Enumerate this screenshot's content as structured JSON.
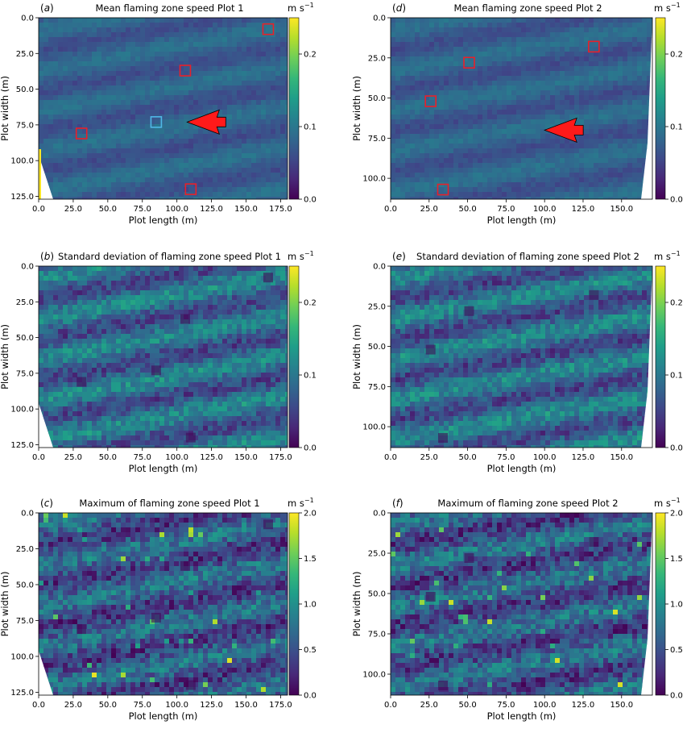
{
  "colors": {
    "viridis": [
      "#440154",
      "#482878",
      "#3e4989",
      "#31688e",
      "#26828e",
      "#1f9e89",
      "#35b779",
      "#6ece58",
      "#b5de2b",
      "#fde725"
    ],
    "marker_red": "#e8202a",
    "marker_blue": "#4fb8e6",
    "arrow_red": "#ff1a1a"
  },
  "chart_data": [
    {
      "panel": "(a)",
      "type": "heatmap",
      "title": "Mean flaming zone speed Plot 1",
      "xlabel": "Plot length (m)",
      "ylabel": "Plot width (m)",
      "xlim": [
        0,
        180
      ],
      "ylim": [
        127,
        0
      ],
      "xticks": [
        "0.0",
        "25.0",
        "50.0",
        "75.0",
        "100.0",
        "125.0",
        "150.0",
        "175.0"
      ],
      "yticks": [
        "0.0",
        "25.0",
        "50.0",
        "75.0",
        "100.0",
        "125.0"
      ],
      "colorbar": {
        "label": "m s⁻¹",
        "min": 0,
        "max": 0.25,
        "ticks": [
          "0.0",
          "0.1",
          "0.2"
        ]
      },
      "field_level": 0.08,
      "squares": [
        {
          "x": 166,
          "y": 8,
          "color": "red"
        },
        {
          "x": 106,
          "y": 37,
          "color": "red"
        },
        {
          "x": 85,
          "y": 73,
          "color": "blue"
        },
        {
          "x": 31,
          "y": 81,
          "color": "red"
        },
        {
          "x": 110,
          "y": 120,
          "color": "red"
        }
      ],
      "arrow": {
        "x": 133,
        "y": 73,
        "direction": "left"
      }
    },
    {
      "panel": "(b)",
      "type": "heatmap",
      "title": "Standard deviation of flaming zone speed Plot 1",
      "xlabel": "Plot length (m)",
      "ylabel": "Plot width (m)",
      "xlim": [
        0,
        180
      ],
      "ylim": [
        127,
        0
      ],
      "xticks": [
        "0.0",
        "25.0",
        "50.0",
        "75.0",
        "100.0",
        "125.0",
        "150.0",
        "175.0"
      ],
      "yticks": [
        "0.0",
        "25.0",
        "50.0",
        "75.0",
        "100.0",
        "125.0"
      ],
      "colorbar": {
        "label": "m s⁻¹",
        "min": 0,
        "max": 0.25,
        "ticks": [
          "0.0",
          "0.1",
          "0.2"
        ]
      },
      "field_level": 0.1
    },
    {
      "panel": "(c)",
      "type": "heatmap",
      "title": "Maximum of flaming zone speed Plot 1",
      "xlabel": "Plot length (m)",
      "ylabel": "Plot width (m)",
      "xlim": [
        0,
        180
      ],
      "ylim": [
        127,
        0
      ],
      "xticks": [
        "0.0",
        "25.0",
        "50.0",
        "75.0",
        "100.0",
        "125.0",
        "150.0",
        "175.0"
      ],
      "yticks": [
        "0.0",
        "25.0",
        "50.0",
        "75.0",
        "100.0",
        "125.0"
      ],
      "colorbar": {
        "label": "m s⁻¹",
        "min": 0,
        "max": 2.0,
        "ticks": [
          "0.0",
          "0.5",
          "1.0",
          "1.5",
          "2.0"
        ]
      },
      "field_level": 0.7
    },
    {
      "panel": "(d)",
      "type": "heatmap",
      "title": "Mean flaming zone speed Plot 2",
      "xlabel": "Plot length (m)",
      "ylabel": "Plot width (m)",
      "xlim": [
        0,
        170
      ],
      "ylim": [
        113,
        0
      ],
      "xticks": [
        "0.0",
        "25.0",
        "50.0",
        "75.0",
        "100.0",
        "125.0",
        "150.0"
      ],
      "yticks": [
        "0.0",
        "25.0",
        "50.0",
        "75.0",
        "100.0"
      ],
      "colorbar": {
        "label": "m s⁻¹",
        "min": 0,
        "max": 0.25,
        "ticks": [
          "0.0",
          "0.1",
          "0.2"
        ]
      },
      "field_level": 0.08,
      "squares": [
        {
          "x": 132,
          "y": 18,
          "color": "red"
        },
        {
          "x": 51,
          "y": 28,
          "color": "red"
        },
        {
          "x": 26,
          "y": 52,
          "color": "red"
        },
        {
          "x": 34,
          "y": 107,
          "color": "red"
        }
      ],
      "arrow": {
        "x": 123,
        "y": 70,
        "direction": "left"
      }
    },
    {
      "panel": "(e)",
      "type": "heatmap",
      "title": "Standard deviation of flaming zone speed Plot 2",
      "xlabel": "Plot length (m)",
      "ylabel": "Plot width (m)",
      "xlim": [
        0,
        170
      ],
      "ylim": [
        113,
        0
      ],
      "xticks": [
        "0.0",
        "25.0",
        "50.0",
        "75.0",
        "100.0",
        "125.0",
        "150.0"
      ],
      "yticks": [
        "0.0",
        "25.0",
        "50.0",
        "75.0",
        "100.0"
      ],
      "colorbar": {
        "label": "m s⁻¹",
        "min": 0,
        "max": 0.25,
        "ticks": [
          "0.0",
          "0.1",
          "0.2"
        ]
      },
      "field_level": 0.1
    },
    {
      "panel": "(f)",
      "type": "heatmap",
      "title": "Maximum of flaming zone speed Plot 2",
      "xlabel": "Plot length (m)",
      "ylabel": "Plot width (m)",
      "xlim": [
        0,
        170
      ],
      "ylim": [
        113,
        0
      ],
      "xticks": [
        "0.0",
        "25.0",
        "50.0",
        "75.0",
        "100.0",
        "125.0",
        "150.0"
      ],
      "yticks": [
        "0.0",
        "25.0",
        "50.0",
        "75.0",
        "100.0"
      ],
      "colorbar": {
        "label": "m s⁻¹",
        "min": 0,
        "max": 2.0,
        "ticks": [
          "0.0",
          "0.5",
          "1.0",
          "1.5",
          "2.0"
        ]
      },
      "field_level": 0.7
    }
  ]
}
